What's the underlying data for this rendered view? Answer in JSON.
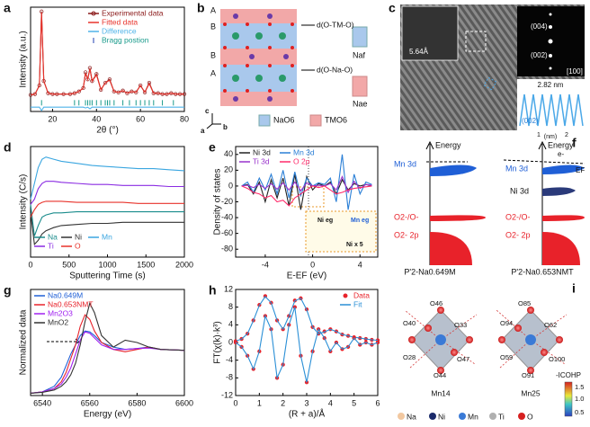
{
  "chart_data": [
    {
      "type": "line",
      "label": "a",
      "xlabel": "2θ (°)",
      "ylabel": "Intensity (a.u.)",
      "x": [
        10,
        12,
        14,
        15,
        16,
        18,
        20,
        22,
        25,
        28,
        30,
        32,
        34,
        35,
        36,
        37,
        38,
        40,
        42,
        44,
        46,
        48,
        50,
        52,
        54,
        56,
        58,
        60,
        62,
        64,
        66,
        68,
        70,
        72,
        74,
        76,
        78,
        80
      ],
      "xlim": [
        10,
        80
      ],
      "ylim": [
        -0.15,
        1.05
      ],
      "xticks": [
        20,
        40,
        60,
        80
      ],
      "legend": "upper right",
      "series": [
        {
          "name": "Experimental data",
          "color": "#8b1a1a",
          "mode": "lines+markers",
          "values": [
            0.04,
            0.05,
            0.15,
            1.0,
            0.2,
            0.06,
            0.05,
            0.05,
            0.05,
            0.05,
            0.06,
            0.08,
            0.12,
            0.3,
            0.22,
            0.35,
            0.2,
            0.28,
            0.1,
            0.18,
            0.22,
            0.08,
            0.07,
            0.09,
            0.06,
            0.08,
            0.07,
            0.15,
            0.07,
            0.18,
            0.06,
            0.06,
            0.05,
            0.05,
            0.06,
            0.05,
            0.05,
            0.05
          ]
        },
        {
          "name": "Fitted data",
          "color": "#e8322a",
          "mode": "lines",
          "values": [
            0.04,
            0.05,
            0.15,
            0.99,
            0.2,
            0.06,
            0.05,
            0.05,
            0.05,
            0.05,
            0.06,
            0.08,
            0.12,
            0.29,
            0.22,
            0.34,
            0.2,
            0.27,
            0.1,
            0.18,
            0.21,
            0.08,
            0.07,
            0.09,
            0.06,
            0.08,
            0.07,
            0.15,
            0.07,
            0.17,
            0.06,
            0.06,
            0.05,
            0.05,
            0.06,
            0.05,
            0.05,
            0.05
          ]
        },
        {
          "name": "Difference",
          "color": "#4fb3e8",
          "mode": "lines",
          "values": [
            -0.1,
            -0.1,
            -0.1,
            -0.14,
            -0.1,
            -0.1,
            -0.1,
            -0.1,
            -0.1,
            -0.1,
            -0.1,
            -0.1,
            -0.1,
            -0.11,
            -0.1,
            -0.12,
            -0.1,
            -0.1,
            -0.1,
            -0.1,
            -0.1,
            -0.1,
            -0.1,
            -0.1,
            -0.1,
            -0.1,
            -0.1,
            -0.1,
            -0.1,
            -0.1,
            -0.1,
            -0.1,
            -0.1,
            -0.1,
            -0.1,
            -0.1,
            -0.1,
            -0.1
          ]
        },
        {
          "name": "Bragg postion",
          "color": "#1a9b8c",
          "mode": "ticks",
          "x": [
            15,
            30,
            32,
            35,
            36,
            37,
            38,
            40,
            42,
            44,
            45,
            46,
            48,
            52,
            55,
            58,
            60,
            62,
            64,
            66,
            70,
            75
          ],
          "values": [
            -0.05,
            -0.05,
            -0.05,
            -0.05,
            -0.05,
            -0.05,
            -0.05,
            -0.05,
            -0.05,
            -0.05,
            -0.05,
            -0.05,
            -0.05,
            -0.05,
            -0.05,
            -0.05,
            -0.05,
            -0.05,
            -0.05,
            -0.05,
            -0.05,
            -0.05
          ]
        }
      ]
    },
    {
      "type": "line",
      "label": "d",
      "xlabel": "Sputtering Time (s)",
      "ylabel": "Intensity (C/s)",
      "x": [
        0,
        50,
        100,
        150,
        200,
        300,
        400,
        600,
        800,
        1000,
        1200,
        1400,
        1600,
        1800,
        2000
      ],
      "xlim": [
        0,
        2000
      ],
      "ylim": [
        0,
        1.05
      ],
      "xticks": [
        0,
        500,
        1000,
        1500,
        2000
      ],
      "legend": "lower left",
      "legend_ncol": 3,
      "series": [
        {
          "name": "Na",
          "color": "#1a8c8c",
          "mode": "lines",
          "values": [
            0.5,
            0.2,
            0.3,
            0.38,
            0.4,
            0.42,
            0.42,
            0.43,
            0.43,
            0.43,
            0.43,
            0.43,
            0.43,
            0.43,
            0.43
          ]
        },
        {
          "name": "Ni",
          "color": "#333333",
          "mode": "lines",
          "values": [
            0.42,
            0.12,
            0.16,
            0.22,
            0.25,
            0.28,
            0.3,
            0.31,
            0.32,
            0.32,
            0.33,
            0.33,
            0.33,
            0.33,
            0.33
          ]
        },
        {
          "name": "Mn",
          "color": "#3aa6e0",
          "mode": "lines",
          "values": [
            0.55,
            0.7,
            0.85,
            0.93,
            0.95,
            0.93,
            0.91,
            0.89,
            0.87,
            0.86,
            0.85,
            0.84,
            0.84,
            0.83,
            0.82
          ]
        },
        {
          "name": "Ti",
          "color": "#8a2be2",
          "mode": "lines",
          "values": [
            0.5,
            0.55,
            0.65,
            0.7,
            0.72,
            0.72,
            0.71,
            0.7,
            0.69,
            0.69,
            0.68,
            0.68,
            0.68,
            0.67,
            0.67
          ]
        },
        {
          "name": "O",
          "color": "#e8322a",
          "mode": "lines",
          "values": [
            0.38,
            0.45,
            0.5,
            0.52,
            0.53,
            0.53,
            0.53,
            0.52,
            0.52,
            0.52,
            0.52,
            0.51,
            0.51,
            0.51,
            0.51
          ]
        }
      ]
    },
    {
      "type": "line",
      "label": "e",
      "xlabel": "E-EF (eV)",
      "ylabel": "Density of states",
      "x": [
        -6,
        -5.5,
        -5,
        -4.5,
        -4,
        -3.5,
        -3,
        -2.5,
        -2,
        -1.5,
        -1,
        -0.5,
        0,
        0.5,
        1,
        1.5,
        2,
        2.5,
        3,
        3.5,
        4,
        4.5,
        5
      ],
      "xlim": [
        -6.5,
        5.5
      ],
      "ylim": [
        -90,
        50
      ],
      "xticks": [
        -4,
        0,
        4
      ],
      "yticks": [
        -80,
        -60,
        -40,
        -20,
        0,
        20,
        40
      ],
      "legend": "upper left",
      "legend_ncol": 2,
      "annotations": [
        "Ni eg",
        "Mn eg",
        "Ni x 5"
      ],
      "series": [
        {
          "name": "Ni 3d",
          "color": "#222222",
          "mode": "lines",
          "values": [
            0,
            2,
            -10,
            5,
            -20,
            8,
            -15,
            10,
            -25,
            15,
            -30,
            12,
            -5,
            3,
            0,
            5,
            -10,
            8,
            -5,
            3,
            0,
            2,
            0
          ]
        },
        {
          "name": "Mn 3d",
          "color": "#2a7fd6",
          "mode": "lines",
          "values": [
            0,
            5,
            -8,
            10,
            -5,
            15,
            -10,
            20,
            -15,
            18,
            -12,
            10,
            0,
            4,
            2,
            10,
            -20,
            40,
            -30,
            15,
            -10,
            5,
            2
          ]
        },
        {
          "name": "Ti 3d",
          "color": "#9932cc",
          "mode": "lines",
          "values": [
            0,
            1,
            -2,
            2,
            -3,
            3,
            -4,
            4,
            -5,
            5,
            -6,
            4,
            0,
            1,
            0,
            3,
            -5,
            12,
            -8,
            6,
            -3,
            2,
            1
          ]
        },
        {
          "name": "O 2p",
          "color": "#ff2a6a",
          "mode": "lines",
          "values": [
            0,
            -3,
            -8,
            -10,
            -15,
            -12,
            -20,
            -18,
            -25,
            -15,
            -10,
            -5,
            0,
            -2,
            0,
            -5,
            -10,
            -8,
            -5,
            -3,
            -2,
            -1,
            0
          ]
        }
      ]
    },
    {
      "type": "line",
      "label": "g",
      "xlabel": "Energy (eV)",
      "ylabel": "Normalized data",
      "x": [
        6535,
        6540,
        6545,
        6548,
        6550,
        6552,
        6554,
        6556,
        6558,
        6560,
        6562,
        6565,
        6570,
        6575,
        6580,
        6585,
        6590,
        6600
      ],
      "xlim": [
        6535,
        6600
      ],
      "ylim": [
        0,
        2.3
      ],
      "xticks": [
        6540,
        6560,
        6580,
        6600
      ],
      "legend": "upper left",
      "series": [
        {
          "name": "Na0.649M",
          "color": "#1f5fd6",
          "mode": "lines",
          "values": [
            0.05,
            0.08,
            0.2,
            0.4,
            0.65,
            0.9,
            1.1,
            1.3,
            1.4,
            1.38,
            1.3,
            1.15,
            1.05,
            1.0,
            1.02,
            1.05,
            1.0,
            0.98
          ]
        },
        {
          "name": "Na0.653NMT",
          "color": "#e8222a",
          "mode": "lines",
          "values": [
            0.05,
            0.08,
            0.15,
            0.3,
            0.5,
            0.8,
            1.1,
            1.5,
            1.75,
            1.65,
            1.4,
            1.15,
            1.0,
            0.95,
            1.0,
            1.05,
            1.0,
            0.98
          ]
        },
        {
          "name": "Mn2O3",
          "color": "#a020f0",
          "mode": "lines",
          "values": [
            0.05,
            0.08,
            0.15,
            0.25,
            0.4,
            0.6,
            0.9,
            1.2,
            1.38,
            1.35,
            1.25,
            1.1,
            1.0,
            1.0,
            1.02,
            1.03,
            1.0,
            0.98
          ]
        },
        {
          "name": "MnO2",
          "color": "#333333",
          "mode": "lines",
          "values": [
            0.05,
            0.07,
            0.12,
            0.2,
            0.3,
            0.45,
            0.7,
            1.1,
            1.6,
            2.0,
            1.8,
            1.3,
            1.05,
            1.2,
            1.15,
            1.05,
            1.0,
            0.98
          ]
        }
      ]
    },
    {
      "type": "line",
      "label": "h",
      "xlabel": "(R + a)/Å",
      "ylabel": "FT(χ(k)·k³)",
      "x": [
        0,
        0.25,
        0.5,
        0.75,
        1,
        1.25,
        1.5,
        1.75,
        2,
        2.25,
        2.5,
        2.75,
        3,
        3.25,
        3.5,
        3.75,
        4,
        4.25,
        4.5,
        4.75,
        5,
        5.25,
        5.5,
        5.75,
        6
      ],
      "xlim": [
        0,
        6
      ],
      "ylim": [
        -12,
        12
      ],
      "xticks": [
        0,
        1,
        2,
        3,
        4,
        5,
        6
      ],
      "yticks": [
        -12,
        -8,
        -4,
        0,
        4,
        8,
        12
      ],
      "legend": "upper right",
      "series": [
        {
          "name": "Data",
          "color": "#e8222a",
          "mode": "markers",
          "values": [
            0.3,
            0.8,
            2,
            5,
            8.5,
            10.5,
            9,
            5,
            3,
            6,
            9.5,
            10,
            7.5,
            3.5,
            2,
            2.5,
            3,
            2.5,
            1.8,
            1.5,
            1.2,
            1,
            0.8,
            0.6,
            0.5
          ]
        },
        {
          "name": "Fit",
          "color": "#2a8fd6",
          "mode": "lines",
          "values": [
            0.3,
            0.8,
            2,
            5,
            8.4,
            10.4,
            9,
            5,
            3,
            6,
            9.4,
            10,
            7.4,
            3.5,
            2,
            2.4,
            3,
            2.5,
            1.8,
            1.5,
            1.2,
            1,
            0.8,
            0.6,
            0.5
          ]
        },
        {
          "color": "#e8222a",
          "mode": "markers",
          "values": [
            0,
            -1,
            -3,
            -6,
            -2,
            6,
            3,
            -8,
            -5,
            4,
            8,
            -3,
            -9,
            -2,
            3,
            1,
            -2,
            0,
            -1.5,
            -1,
            1,
            -0.5,
            0,
            -0.5,
            0
          ]
        },
        {
          "color": "#2a8fd6",
          "mode": "lines",
          "values": [
            0,
            -1,
            -3,
            -6,
            -2,
            6,
            3,
            -8,
            -5,
            4,
            8,
            -3,
            -9,
            -2,
            3,
            1,
            -2,
            0,
            -1.5,
            -1,
            1,
            -0.5,
            0,
            -0.5,
            0
          ]
        }
      ]
    }
  ],
  "panel_b": {
    "label": "b",
    "layers": [
      "A",
      "B",
      "B",
      "A"
    ],
    "d_tm": "d(O-TM-O)",
    "d_na": "d(O-Na-O)",
    "na_f": "Naf",
    "na_e": "Nae",
    "nao6": "NaO6",
    "tmo6": "TMO6",
    "axes": [
      "c",
      "a",
      "b"
    ]
  },
  "panel_c": {
    "label": "c",
    "spacing": "5.64Å",
    "spots": [
      "(004)",
      "(002)"
    ],
    "zone": "[100]",
    "profile": "2.82 nm",
    "plane": "(002)",
    "axis": [
      "1",
      "(nm)",
      "2"
    ]
  },
  "panel_f": {
    "label": "f",
    "left": {
      "energy": "Energy",
      "mn": "Mn 3d",
      "oo": "O2-/O-",
      "o2p": "O2- 2p",
      "name": "P'2-Na0.649M"
    },
    "right": {
      "energy": "Energy",
      "mn": "Mn 3d",
      "e": "e-",
      "ef": "EF",
      "ni": "Ni 3d",
      "oo": "O2-/O-",
      "o2p": "O2- 2p",
      "name": "P'2-Na0.653NMT"
    }
  },
  "panel_i": {
    "label": "i",
    "left": {
      "center": "Mn14",
      "oxygens": [
        "O46",
        "O33",
        "O40",
        "O47",
        "O28",
        "O44"
      ]
    },
    "right": {
      "center": "Mn25",
      "oxygens": [
        "O85",
        "O94",
        "O62",
        "O100",
        "O59",
        "O91"
      ]
    },
    "colorbar": {
      "label": "-ICOHP",
      "ticks": [
        "1.5",
        "1.0",
        "0.5"
      ]
    },
    "legend": [
      "Na",
      "Ni",
      "Mn",
      "Ti",
      "O"
    ]
  }
}
